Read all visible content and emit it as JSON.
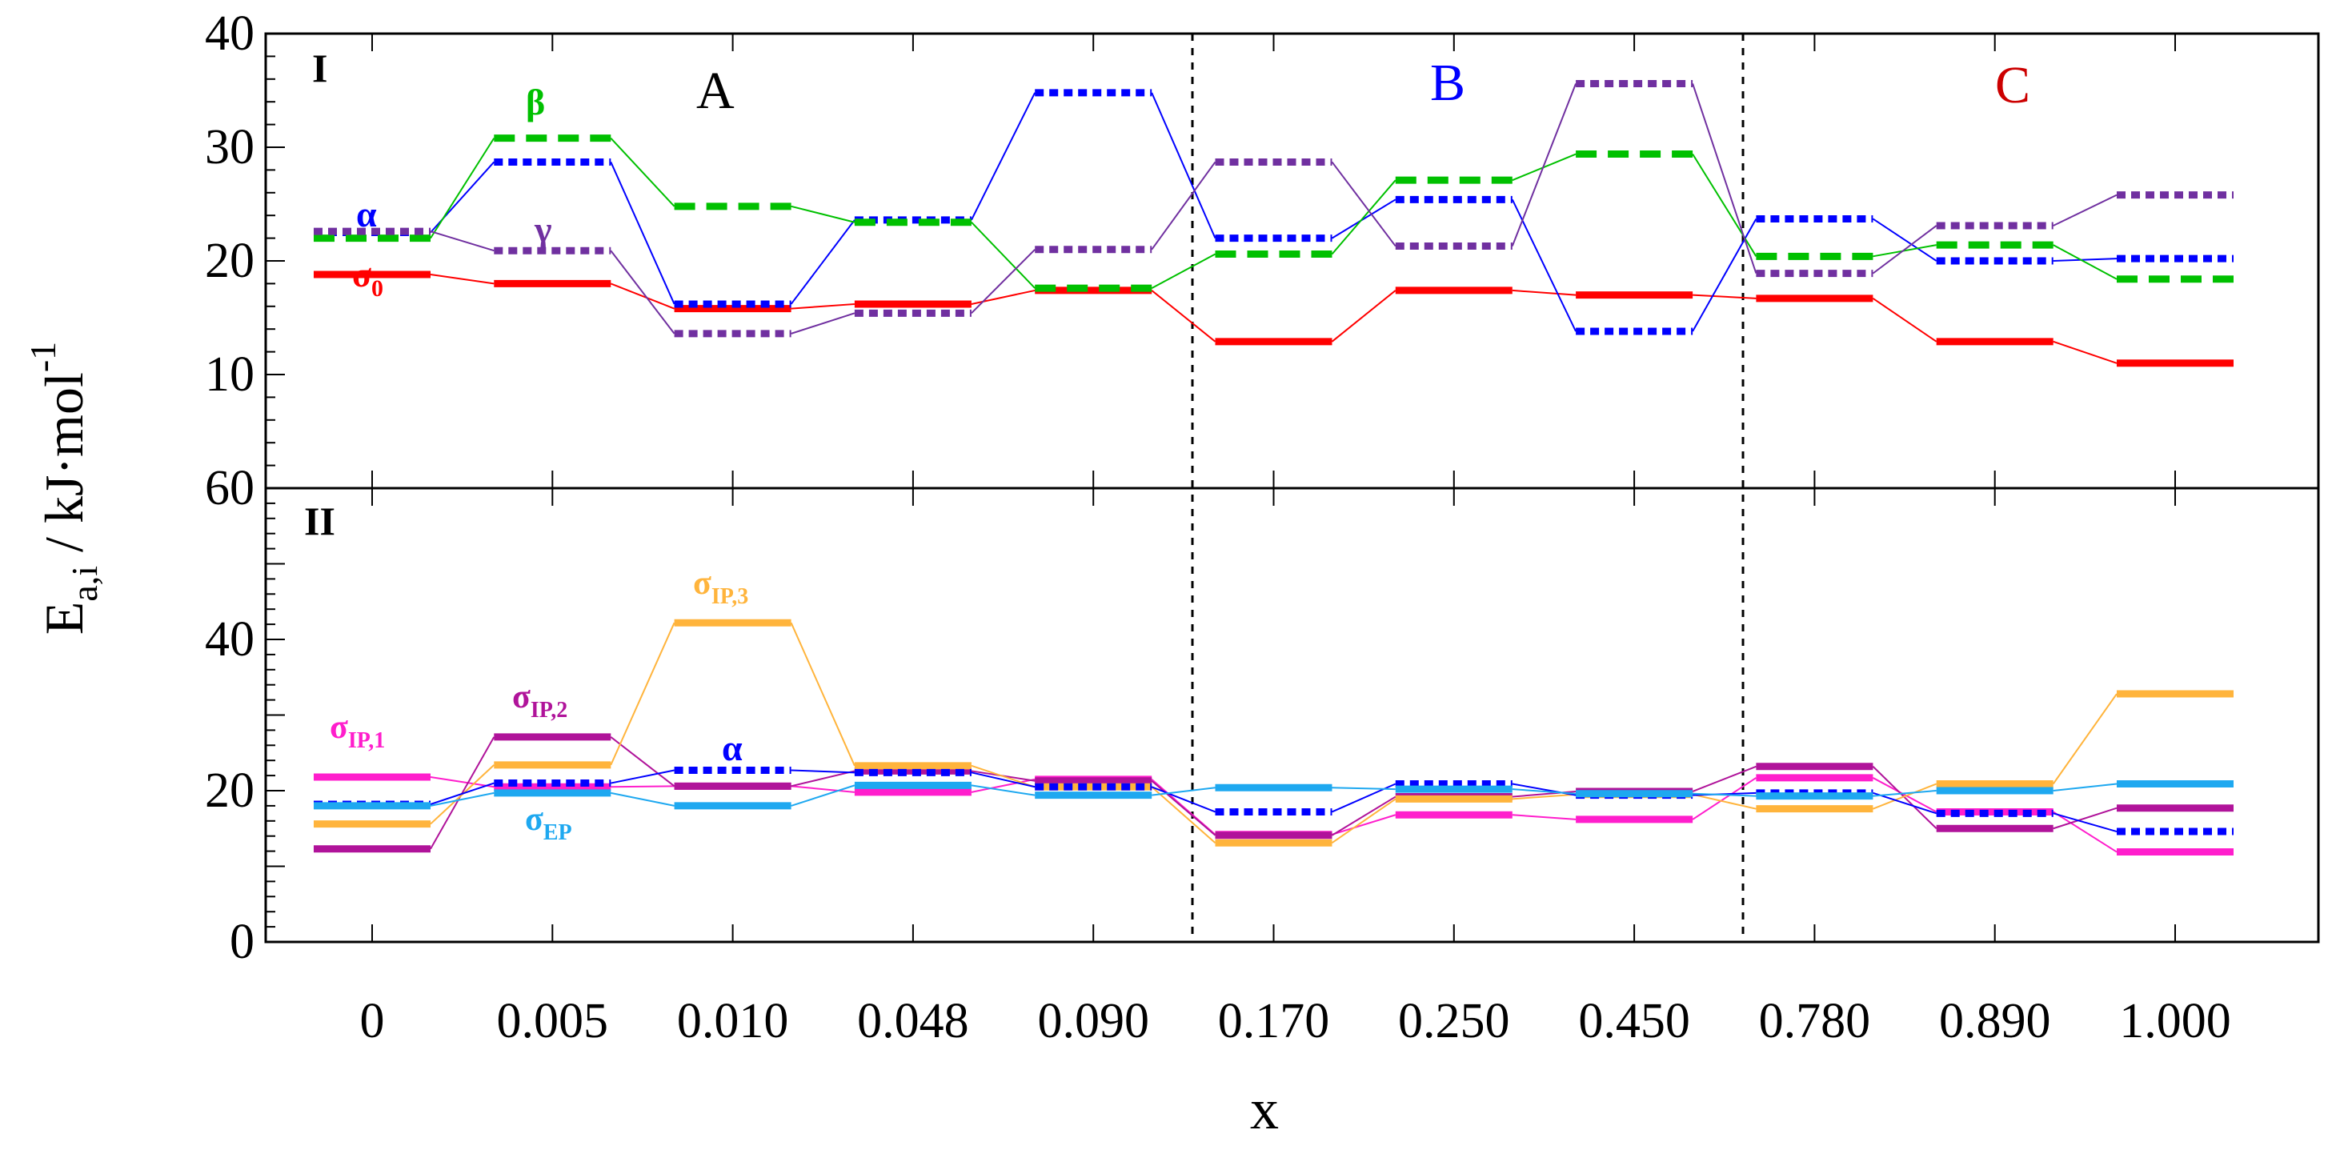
{
  "chart_data": [
    {
      "panel": "I",
      "type": "line",
      "ylim": [
        0,
        40
      ],
      "yticks": [
        "10",
        "20",
        "30",
        "40"
      ],
      "y_axis_title": "E",
      "y_axis_title_subscript": "a,i",
      "y_axis_title_unit": " / kJ·mol",
      "y_axis_title_exponent": "-1",
      "regions": [
        {
          "label": "A",
          "color": "#000000"
        },
        {
          "label": "B",
          "color": "#0000ff"
        },
        {
          "label": "C",
          "color": "#cc0000"
        }
      ],
      "series": [
        {
          "name": "σ",
          "subscript": "0",
          "color": "#ff0000",
          "style": "solid",
          "values": [
            18.8,
            18.0,
            15.8,
            16.2,
            17.4,
            12.9,
            17.4,
            17.0,
            16.7,
            12.9,
            11.0
          ]
        },
        {
          "name": "α",
          "subscript": "",
          "color": "#0000ff",
          "style": "dotted",
          "values": [
            22.5,
            28.7,
            16.2,
            23.6,
            34.8,
            22.0,
            25.4,
            13.8,
            23.7,
            20.0,
            20.2
          ]
        },
        {
          "name": "β",
          "subscript": "",
          "color": "#00c000",
          "style": "dashed",
          "values": [
            22.0,
            30.8,
            24.8,
            23.4,
            17.6,
            20.6,
            27.1,
            29.4,
            20.4,
            21.4,
            18.4
          ]
        },
        {
          "name": "γ",
          "subscript": "",
          "color": "#7030a0",
          "style": "dotted",
          "values": [
            22.6,
            20.9,
            13.6,
            15.4,
            21.0,
            28.7,
            21.3,
            35.6,
            18.9,
            23.1,
            25.8
          ]
        }
      ]
    },
    {
      "panel": "II",
      "type": "line",
      "ylim": [
        0,
        60
      ],
      "yticks": [
        "0",
        "20",
        "40",
        "60"
      ],
      "series": [
        {
          "name": "σ",
          "subscript": "IP,1",
          "color": "#ff1ecc",
          "style": "solid",
          "values": [
            21.8,
            20.5,
            20.6,
            19.8,
            21.5,
            14.2,
            16.8,
            16.2,
            21.7,
            17.2,
            11.9
          ]
        },
        {
          "name": "σ",
          "subscript": "IP,2",
          "color": "#b0139a",
          "style": "solid",
          "values": [
            12.3,
            27.1,
            20.6,
            22.6,
            21.3,
            14.1,
            19.2,
            19.9,
            23.2,
            15.0,
            17.7
          ]
        },
        {
          "name": "σ",
          "subscript": "IP,3",
          "color": "#ffb43c",
          "style": "solid",
          "values": [
            15.6,
            23.4,
            42.2,
            23.3,
            20.5,
            13.1,
            18.9,
            19.5,
            17.6,
            20.9,
            32.8
          ]
        },
        {
          "name": "α",
          "subscript": "",
          "color": "#0000ff",
          "style": "dotted",
          "values": [
            18.2,
            21.0,
            22.7,
            22.4,
            20.5,
            17.2,
            20.9,
            19.4,
            19.7,
            17.0,
            14.6
          ]
        },
        {
          "name": "σ",
          "subscript": "EP",
          "color": "#1ea8f0",
          "style": "solid",
          "values": [
            18.0,
            19.7,
            18.0,
            20.7,
            19.4,
            20.4,
            20.2,
            19.6,
            19.3,
            20.0,
            20.9
          ]
        }
      ]
    }
  ],
  "categories": [
    "0",
    "0.005",
    "0.010",
    "0.048",
    "0.090",
    "0.170",
    "0.250",
    "0.450",
    "0.780",
    "0.890",
    "1.000"
  ],
  "xlabel": "x"
}
